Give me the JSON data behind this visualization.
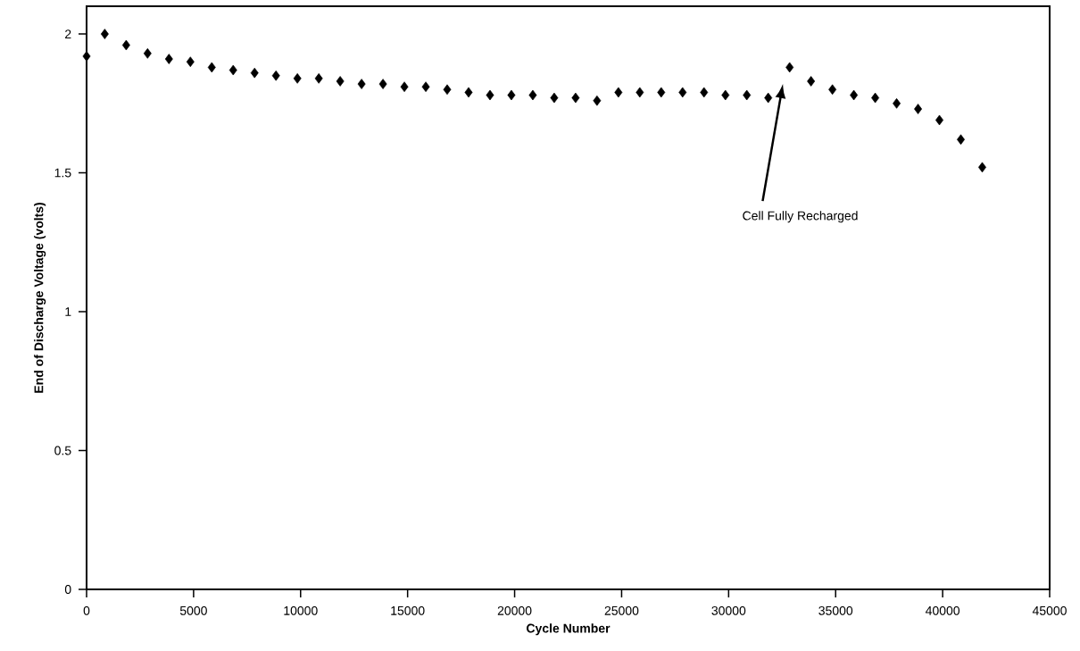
{
  "chart_data": {
    "type": "scatter",
    "xlabel": "Cycle Number",
    "ylabel": "End of Discharge Voltage (volts)",
    "x": [
      0,
      850,
      1850,
      2850,
      3850,
      4850,
      5850,
      6850,
      7850,
      8850,
      9850,
      10850,
      11850,
      12850,
      13850,
      14850,
      15850,
      16850,
      17850,
      18850,
      19850,
      20850,
      21850,
      22850,
      23850,
      24850,
      25850,
      26850,
      27850,
      28850,
      29850,
      30850,
      31850,
      32850,
      33850,
      34850,
      35850,
      36850,
      37850,
      38850,
      39850,
      40850,
      41850
    ],
    "values": [
      1.92,
      2.0,
      1.96,
      1.93,
      1.91,
      1.9,
      1.88,
      1.87,
      1.86,
      1.85,
      1.84,
      1.84,
      1.83,
      1.82,
      1.82,
      1.81,
      1.81,
      1.8,
      1.79,
      1.78,
      1.78,
      1.78,
      1.77,
      1.77,
      1.76,
      1.79,
      1.79,
      1.79,
      1.79,
      1.79,
      1.78,
      1.78,
      1.77,
      1.88,
      1.83,
      1.8,
      1.78,
      1.77,
      1.75,
      1.73,
      1.69,
      1.62,
      1.52
    ],
    "color": "#000000",
    "marker": "diamond",
    "grid": false,
    "xlim": [
      0,
      45000
    ],
    "xticks": [
      0,
      5000,
      10000,
      15000,
      20000,
      25000,
      30000,
      35000,
      40000,
      45000
    ],
    "ylim": [
      0,
      2.1
    ],
    "yticks": [
      0,
      0.5,
      1,
      1.5,
      2
    ],
    "annotations": [
      "Cell Fully Recharged"
    ]
  }
}
